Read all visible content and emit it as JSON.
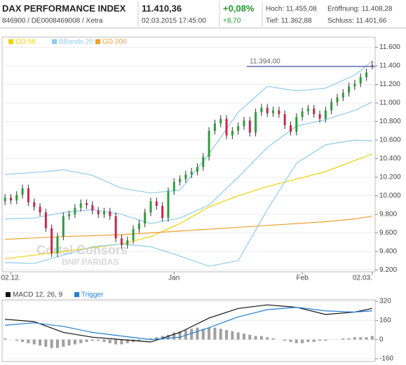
{
  "header": {
    "title": "DAX PERFORMANCE INDEX",
    "subtitle": "846900 / DE0008469008 / Xetra",
    "price": "11.410,36",
    "datetime": "02.03.2015 17:45:00",
    "change_pct": "+0,08%",
    "change_abs": "+8,70",
    "high": "Hoch: 11.455,08",
    "open": "Eröffnung: 11.408,28",
    "low": "Tief: 11.362,88",
    "close": "Schluss: 11.401,66"
  },
  "chart_data": [
    {
      "type": "candlestick",
      "categories": [
        null,
        "02.12.",
        null,
        null,
        null,
        null,
        null,
        null,
        null,
        null,
        null,
        null,
        null,
        null,
        null,
        null,
        null,
        null,
        null,
        null,
        null,
        null,
        null,
        null,
        null,
        null,
        null,
        null,
        null,
        "Jan",
        null,
        null,
        null,
        null,
        null,
        null,
        null,
        null,
        null,
        null,
        null,
        null,
        null,
        null,
        null,
        null,
        null,
        null,
        null,
        null,
        null,
        "Feb",
        null,
        null,
        null,
        null,
        null,
        null,
        null,
        null,
        null,
        null,
        null,
        "02.03."
      ],
      "open": [
        9940,
        9980,
        9950,
        10010,
        10080,
        9930,
        9880,
        9820,
        9650,
        9380,
        9560,
        9780,
        9800,
        9870,
        9920,
        9900,
        9840,
        9800,
        9830,
        9780,
        9540,
        9470,
        9520,
        9640,
        9700,
        9820,
        9940,
        9890,
        9760,
        10050,
        10150,
        10180,
        10230,
        10260,
        10310,
        10420,
        10700,
        10780,
        10830,
        10650,
        10700,
        10750,
        10810,
        10680,
        10900,
        10950,
        10890,
        10920,
        10880,
        10760,
        10690,
        10850,
        10910,
        10940,
        10880,
        10830,
        10920,
        11010,
        11060,
        11110,
        11180,
        11210,
        11280,
        11408
      ],
      "high": [
        10020,
        10020,
        10050,
        10120,
        10120,
        9970,
        9920,
        9860,
        9690,
        9600,
        9820,
        9840,
        9910,
        9960,
        9960,
        9940,
        9880,
        9870,
        9870,
        9820,
        9580,
        9560,
        9680,
        9740,
        9860,
        9980,
        9980,
        9930,
        10090,
        10190,
        10220,
        10270,
        10300,
        10350,
        10460,
        10740,
        10820,
        10870,
        10870,
        10740,
        10790,
        10850,
        10850,
        10940,
        10990,
        10990,
        10960,
        10960,
        10920,
        10800,
        10890,
        10950,
        10980,
        10980,
        10920,
        10960,
        11050,
        11100,
        11150,
        11220,
        11250,
        11320,
        11370,
        11455
      ],
      "low": [
        9900,
        9910,
        9910,
        9970,
        9890,
        9840,
        9780,
        9610,
        9340,
        9340,
        9520,
        9740,
        9760,
        9830,
        9860,
        9800,
        9760,
        9760,
        9740,
        9500,
        9430,
        9430,
        9480,
        9600,
        9660,
        9780,
        9850,
        9720,
        9720,
        10010,
        10110,
        10140,
        10190,
        10220,
        10270,
        10380,
        10660,
        10740,
        10610,
        10610,
        10660,
        10710,
        10640,
        10640,
        10860,
        10850,
        10850,
        10840,
        10720,
        10650,
        10650,
        10810,
        10870,
        10840,
        10790,
        10790,
        10880,
        10970,
        11020,
        11070,
        11140,
        11170,
        11240,
        11363
      ],
      "close": [
        9980,
        9950,
        10010,
        10080,
        9930,
        9880,
        9820,
        9650,
        9380,
        9560,
        9780,
        9800,
        9870,
        9920,
        9900,
        9840,
        9800,
        9830,
        9780,
        9540,
        9470,
        9520,
        9640,
        9700,
        9820,
        9940,
        9890,
        9760,
        10050,
        10150,
        10180,
        10230,
        10260,
        10310,
        10420,
        10700,
        10780,
        10830,
        10650,
        10700,
        10750,
        10810,
        10680,
        10900,
        10950,
        10890,
        10920,
        10880,
        10760,
        10690,
        10850,
        10910,
        10940,
        10880,
        10830,
        10920,
        11010,
        11060,
        11110,
        11180,
        11210,
        11280,
        11330,
        11402
      ],
      "up_color": "#2e9b3e",
      "down_color": "#c8274a",
      "series": [
        {
          "name": "GD 50",
          "color": "#f2d10a",
          "x": [
            0,
            5,
            10,
            15,
            20,
            25,
            30,
            35,
            40,
            45,
            50,
            55,
            60,
            63
          ],
          "values": [
            9320,
            9360,
            9400,
            9440,
            9480,
            9560,
            9700,
            9880,
            10000,
            10100,
            10180,
            10260,
            10380,
            10450
          ]
        },
        {
          "name": "BBands 20",
          "color": "#8fcbee",
          "x": [
            0,
            5,
            10,
            15,
            20,
            25,
            30,
            35,
            40,
            45,
            50,
            55,
            60,
            63
          ],
          "values": [
            9750,
            9760,
            9820,
            9850,
            9800,
            9700,
            9760,
            9900,
            10200,
            10520,
            10750,
            10820,
            10920,
            11010
          ],
          "upper": [
            10230,
            10250,
            10280,
            10220,
            10080,
            10030,
            10060,
            10450,
            10900,
            11180,
            11130,
            11160,
            11300,
            11450
          ],
          "lower": [
            9280,
            9270,
            9360,
            9450,
            9480,
            9450,
            9350,
            9240,
            9300,
            9850,
            10350,
            10550,
            10600,
            10590
          ]
        },
        {
          "name": "GD 200",
          "color": "#f0a030",
          "x": [
            0,
            5,
            10,
            15,
            20,
            25,
            30,
            35,
            40,
            45,
            50,
            55,
            60,
            63
          ],
          "values": [
            9530,
            9545,
            9560,
            9570,
            9580,
            9600,
            9620,
            9640,
            9660,
            9680,
            9700,
            9720,
            9750,
            9780
          ]
        }
      ],
      "reference_line": {
        "value": 11394,
        "label": "11.394,00",
        "color": "#1a2fa0"
      },
      "watermark": [
        "Cortal Consors",
        "BNP PARIBAS"
      ],
      "ylim": [
        9180,
        11710
      ],
      "yticks": [
        {
          "value": 9200,
          "label": "9.200"
        },
        {
          "value": 9400,
          "label": "9.400"
        },
        {
          "value": 9600,
          "label": "9.600"
        },
        {
          "value": 9800,
          "label": "9.800"
        },
        {
          "value": 10000,
          "label": "10.000"
        },
        {
          "value": 10200,
          "label": "10.200"
        },
        {
          "value": 10400,
          "label": "10.400"
        },
        {
          "value": 10600,
          "label": "10.600"
        },
        {
          "value": 10800,
          "label": "10.800"
        },
        {
          "value": 11000,
          "label": "11.000"
        },
        {
          "value": 11200,
          "label": "11.200"
        },
        {
          "value": 11400,
          "label": "11.400"
        },
        {
          "value": 11600,
          "label": "11.600"
        }
      ],
      "grid": true
    },
    {
      "type": "line",
      "series": [
        {
          "name": "MACD 12, 26, 9",
          "color": "#111111",
          "x": [
            0,
            5,
            10,
            15,
            20,
            25,
            30,
            35,
            40,
            45,
            50,
            55,
            60,
            63
          ],
          "values": [
            170,
            150,
            60,
            20,
            0,
            -20,
            60,
            180,
            260,
            290,
            270,
            210,
            230,
            260
          ]
        },
        {
          "name": "Trigger",
          "color": "#1f7fd6",
          "x": [
            0,
            5,
            10,
            15,
            20,
            25,
            30,
            35,
            40,
            45,
            50,
            55,
            60,
            63
          ],
          "values": [
            120,
            140,
            110,
            60,
            30,
            0,
            20,
            100,
            190,
            250,
            270,
            240,
            230,
            240
          ]
        }
      ],
      "bar_values": [
        10,
        0,
        -10,
        -20,
        -30,
        -40,
        -50,
        -60,
        -70,
        -70,
        -60,
        -50,
        -40,
        -30,
        -20,
        -10,
        -10,
        -20,
        -30,
        -40,
        -40,
        -30,
        -20,
        -10,
        0,
        10,
        20,
        30,
        40,
        60,
        70,
        80,
        90,
        100,
        90,
        100,
        100,
        90,
        80,
        70,
        60,
        50,
        40,
        30,
        30,
        20,
        10,
        0,
        -10,
        -20,
        -30,
        -30,
        -20,
        -20,
        -10,
        -10,
        0,
        0,
        10,
        10,
        20,
        20,
        20,
        30
      ],
      "bar_color": "#a0a0a0",
      "ylim": [
        -183,
        332
      ],
      "yticks": [
        -160,
        0,
        160,
        320
      ],
      "grid": true
    }
  ]
}
